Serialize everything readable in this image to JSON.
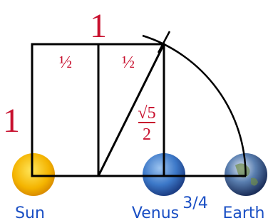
{
  "labels": {
    "top_side": "1",
    "left_side": "1",
    "half_left": "½",
    "half_right": "½",
    "sqrt5_numerator": "√5",
    "sqrt5_denominator": "2"
  },
  "bodies": [
    {
      "name": "Sun"
    },
    {
      "name": "Venus",
      "note": "3/4"
    },
    {
      "name": "Earth"
    }
  ]
}
